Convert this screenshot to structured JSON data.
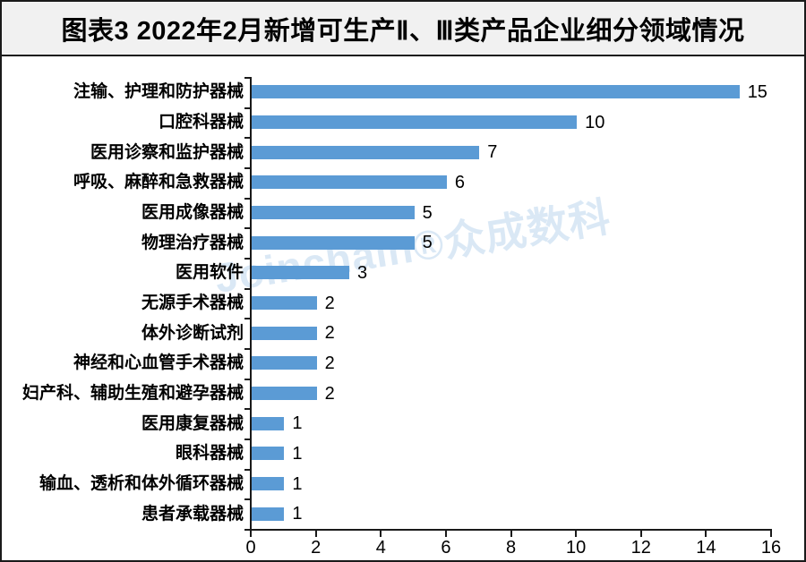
{
  "header": {
    "title": "图表3  2022年2月新增可生产Ⅱ、Ⅲ类产品企业细分领域情况"
  },
  "watermark": {
    "text": "Joinchain®众成数科"
  },
  "chart_data": {
    "type": "bar",
    "orientation": "horizontal",
    "title": "图表3  2022年2月新增可生产Ⅱ、Ⅲ类产品企业细分领域情况",
    "categories": [
      "注输、护理和防护器械",
      "口腔科器械",
      "医用诊察和监护器械",
      "呼吸、麻醉和急救器械",
      "医用成像器械",
      "物理治疗器械",
      "医用软件",
      "无源手术器械",
      "体外诊断试剂",
      "神经和心血管手术器械",
      "妇产科、辅助生殖和避孕器械",
      "医用康复器械",
      "眼科器械",
      "输血、透析和体外循环器械",
      "患者承载器械"
    ],
    "values": [
      15,
      10,
      7,
      6,
      5,
      5,
      3,
      2,
      2,
      2,
      2,
      1,
      1,
      1,
      1
    ],
    "value_labels": [
      "15",
      "10",
      "7",
      "6",
      "5",
      "5",
      "3",
      "2",
      "2",
      "2",
      "2",
      "1",
      "1",
      "1",
      "1"
    ],
    "xlabel": "",
    "ylabel": "",
    "xlim": [
      0,
      16
    ],
    "xticks": [
      "0",
      "2",
      "4",
      "6",
      "8",
      "10",
      "12",
      "14",
      "16"
    ],
    "grid": false,
    "legend": null,
    "bar_color": "#5b9bd5",
    "axis_color": "#1a1a1a",
    "value_labels_shown": true
  },
  "colors": {
    "header_bg": "#f1f1f1",
    "header_text": "#000000",
    "frame_border": "#1a1a1a",
    "chart_bg": "#ffffff",
    "bar": "#5b9bd5",
    "watermark": "#d6e6f4"
  }
}
